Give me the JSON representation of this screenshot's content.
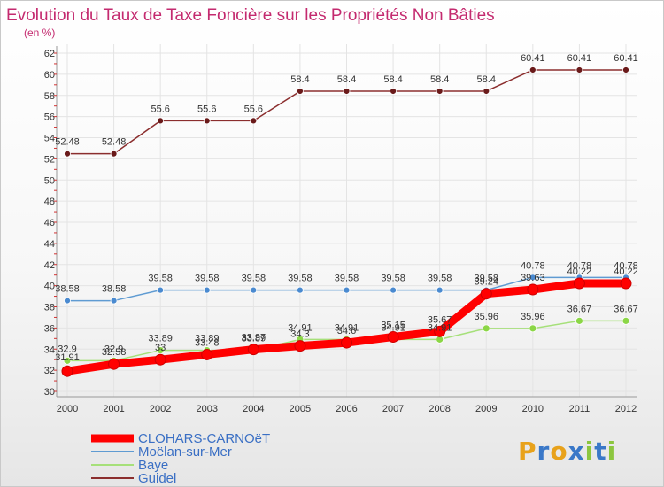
{
  "chart_data": {
    "type": "line",
    "title": "Evolution du Taux de Taxe Foncière sur les Propriétés Non Bâties",
    "subtitle": "(en %)",
    "xlabel": "",
    "ylabel": "",
    "ylim": [
      30,
      62
    ],
    "yticks": [
      "30",
      "32",
      "34",
      "36",
      "38",
      "40",
      "42",
      "44",
      "46",
      "48",
      "50",
      "52",
      "54",
      "56",
      "58",
      "60",
      "62"
    ],
    "categories": [
      "2000",
      "2001",
      "2002",
      "2003",
      "2004",
      "2005",
      "2006",
      "2007",
      "2008",
      "2009",
      "2010",
      "2011",
      "2012"
    ],
    "legend_position": "bottom-left",
    "series": [
      {
        "name": "CLOHARS-CARNOëT",
        "color": "#ff0000",
        "point_color": "#ff0000",
        "values": [
          31.91,
          32.58,
          33.0,
          33.48,
          33.97,
          34.3,
          34.6,
          35.15,
          35.67,
          39.24,
          39.63,
          40.22,
          40.22
        ],
        "labels": [
          "31.91",
          "32.58",
          "33",
          "33.48",
          "33.97",
          "34.3",
          "34.6",
          "35.15",
          "35.67",
          "39.24",
          "39.63",
          "40.22",
          "40.22"
        ]
      },
      {
        "name": "Moëlan-sur-Mer",
        "color": "#5f9bd2",
        "point_color": "#4a8ad0",
        "values": [
          38.58,
          38.58,
          39.58,
          39.58,
          39.58,
          39.58,
          39.58,
          39.58,
          39.58,
          39.58,
          40.78,
          40.78,
          40.78
        ],
        "labels": [
          "38.58",
          "38.58",
          "39.58",
          "39.58",
          "39.58",
          "39.58",
          "39.58",
          "39.58",
          "39.58",
          "39.58",
          "40.78",
          "40.78",
          "40.78"
        ]
      },
      {
        "name": "Baye",
        "color": "#a6e07a",
        "point_color": "#8bd646",
        "values": [
          32.9,
          32.9,
          33.89,
          33.89,
          33.89,
          34.91,
          34.91,
          34.91,
          34.91,
          35.96,
          35.96,
          36.67,
          36.67
        ],
        "labels": [
          "32.9",
          "32.9",
          "33.89",
          "33.89",
          "33.89",
          "34.91",
          "34.91",
          "34.91",
          "34.91",
          "35.96",
          "35.96",
          "36.67",
          "36.67"
        ]
      },
      {
        "name": "Guidel",
        "color": "#8b2e2e",
        "point_color": "#6a1a1a",
        "values": [
          52.48,
          52.48,
          55.6,
          55.6,
          55.6,
          58.4,
          58.4,
          58.4,
          58.4,
          58.4,
          60.41,
          60.41,
          60.41
        ],
        "labels": [
          "52.48",
          "52.48",
          "55.6",
          "55.6",
          "55.6",
          "58.4",
          "58.4",
          "58.4",
          "58.4",
          "58.4",
          "60.41",
          "60.41",
          "60.41"
        ]
      }
    ],
    "watermark": "Proxiti"
  }
}
